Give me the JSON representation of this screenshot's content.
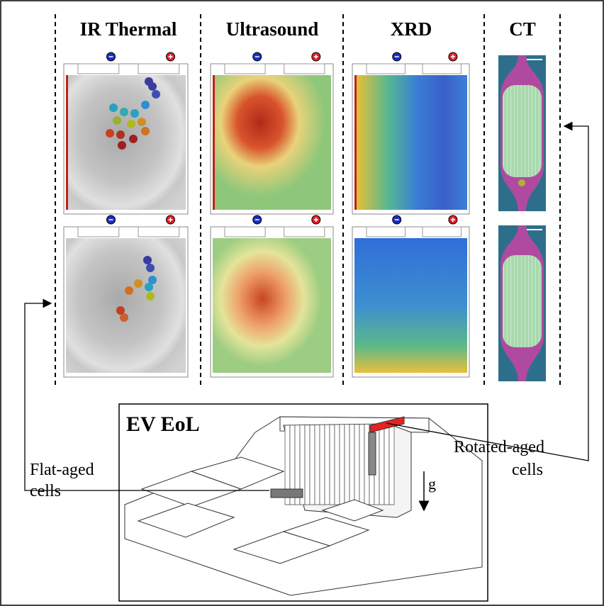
{
  "headers": [
    "IR Thermal",
    "Ultrasound",
    "XRD",
    "CT"
  ],
  "pack": {
    "title": "EV EoL",
    "gravity": "g"
  },
  "labels": {
    "flat_aged": [
      "Flat-aged",
      "cells"
    ],
    "rotated_aged": [
      "Rotated-aged",
      "cells"
    ]
  }
}
